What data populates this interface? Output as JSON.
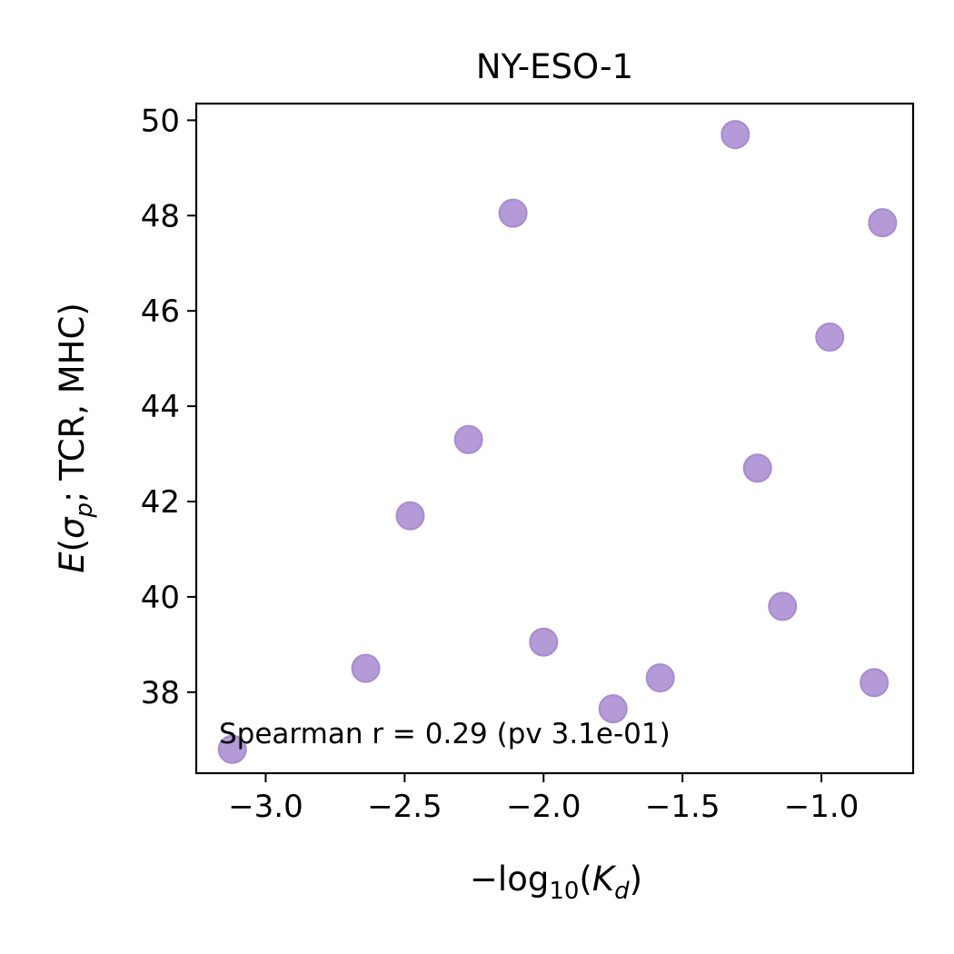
{
  "chart_data": {
    "type": "scatter",
    "title": "NY-ESO-1",
    "xlabel": "−log₁₀(K_d)",
    "ylabel": "E(σ_p; TCR, MHC)",
    "xlim": [
      -3.25,
      -0.67
    ],
    "ylim": [
      36.3,
      50.35
    ],
    "xticks": [
      -3.0,
      -2.5,
      -2.0,
      -1.5,
      -1.0
    ],
    "xtick_labels": [
      "−3.0",
      "−2.5",
      "−2.0",
      "−1.5",
      "−1.0"
    ],
    "yticks": [
      38,
      40,
      42,
      44,
      46,
      48,
      50
    ],
    "ytick_labels": [
      "38",
      "40",
      "42",
      "44",
      "46",
      "48",
      "50"
    ],
    "grid": false,
    "marker_color": "#b49ad6",
    "marker_edge_color": "#a98bd0",
    "points": [
      {
        "x": -3.12,
        "y": 36.8
      },
      {
        "x": -2.64,
        "y": 38.5
      },
      {
        "x": -2.48,
        "y": 41.7
      },
      {
        "x": -2.27,
        "y": 43.3
      },
      {
        "x": -2.11,
        "y": 48.05
      },
      {
        "x": -2.0,
        "y": 39.05
      },
      {
        "x": -1.75,
        "y": 37.65
      },
      {
        "x": -1.58,
        "y": 38.3
      },
      {
        "x": -1.31,
        "y": 49.7
      },
      {
        "x": -1.23,
        "y": 42.7
      },
      {
        "x": -1.14,
        "y": 39.8
      },
      {
        "x": -0.97,
        "y": 45.45
      },
      {
        "x": -0.81,
        "y": 38.2
      },
      {
        "x": -0.78,
        "y": 47.85
      }
    ],
    "annotation": "Spearman r = 0.29 (pv 3.1e-01)"
  }
}
